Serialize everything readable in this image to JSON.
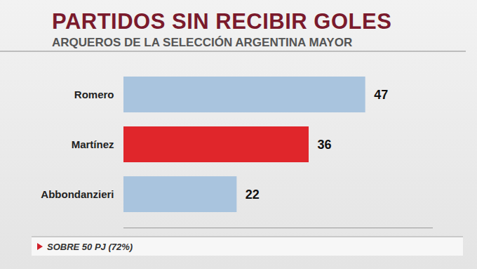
{
  "chart_data": {
    "type": "bar",
    "orientation": "horizontal",
    "title": "PARTIDOS SIN RECIBIR GOLES",
    "subtitle": "ARQUEROS DE LA SELECCIÓN ARGENTINA MAYOR",
    "caption": "SOBRE 50 PJ (72%)",
    "categories": [
      "Romero",
      "Martínez",
      "Abbondanzieri"
    ],
    "values": [
      47,
      36,
      22
    ],
    "colors": [
      "#a9c4de",
      "#e0262b",
      "#a9c4de"
    ],
    "xlim": [
      0,
      60
    ],
    "grid": false,
    "data_labels": true,
    "tick_labels": "y"
  }
}
